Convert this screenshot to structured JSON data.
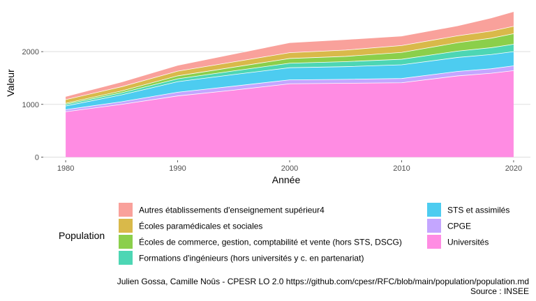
{
  "chart_data": {
    "type": "area",
    "stacked": true,
    "xlabel": "Année",
    "ylabel": "Valeur",
    "x": [
      1980,
      1985,
      1990,
      1995,
      2000,
      2005,
      2010,
      2015,
      2018,
      2020
    ],
    "xlim": [
      1978,
      2021.5
    ],
    "ylim": [
      -60,
      2900
    ],
    "x_ticks": [
      1980,
      1990,
      2000,
      2010,
      2020
    ],
    "y_ticks": [
      0,
      1000,
      2000
    ],
    "grid": true,
    "legend_title": "Population",
    "legend_position": "bottom",
    "series": [
      {
        "name": "Universités",
        "color": "#FF8CE3",
        "values": [
          860,
          1000,
          1160,
          1270,
          1390,
          1400,
          1410,
          1540,
          1590,
          1640
        ]
      },
      {
        "name": "CPGE",
        "color": "#C4A6FF",
        "values": [
          40,
          50,
          70,
          75,
          75,
          75,
          80,
          85,
          85,
          90
        ]
      },
      {
        "name": "STS et assimilés",
        "color": "#4DCCF0",
        "values": [
          70,
          130,
          200,
          220,
          230,
          240,
          260,
          265,
          270,
          270
        ]
      },
      {
        "name": "Formations d'ingénieurs (hors universités y c. en partenariat)",
        "color": "#4DD6B4",
        "values": [
          30,
          40,
          55,
          70,
          85,
          95,
          105,
          120,
          130,
          140
        ]
      },
      {
        "name": "Écoles de commerce, gestion, comptabilité et vente (hors STS, DSCG)",
        "color": "#8BCF4B",
        "values": [
          20,
          35,
          55,
          70,
          90,
          100,
          130,
          160,
          180,
          200
        ]
      },
      {
        "name": "Écoles paramédicales et sociales",
        "color": "#D9B94A",
        "values": [
          70,
          80,
          90,
          100,
          110,
          120,
          130,
          130,
          135,
          140
        ]
      },
      {
        "name": "Autres établissements d'enseignement supérieur4",
        "color": "#F9A19B",
        "values": [
          60,
          90,
          110,
          150,
          190,
          200,
          180,
          190,
          250,
          280
        ]
      }
    ],
    "legend_columns": [
      [
        "Autres établissements d'enseignement supérieur4",
        "Écoles paramédicales et sociales",
        "Écoles de commerce, gestion, comptabilité et vente (hors STS, DSCG)",
        "Formations d'ingénieurs (hors universités y c. en partenariat)"
      ],
      [
        "STS et assimilés",
        "CPGE",
        "Universités"
      ]
    ],
    "caption": [
      "Julien Gossa, Camille Noûs - CPESR LO 2.0 https://github.com/cpesr/RFC/blob/main/population/population.md",
      "Source : INSEE"
    ]
  }
}
